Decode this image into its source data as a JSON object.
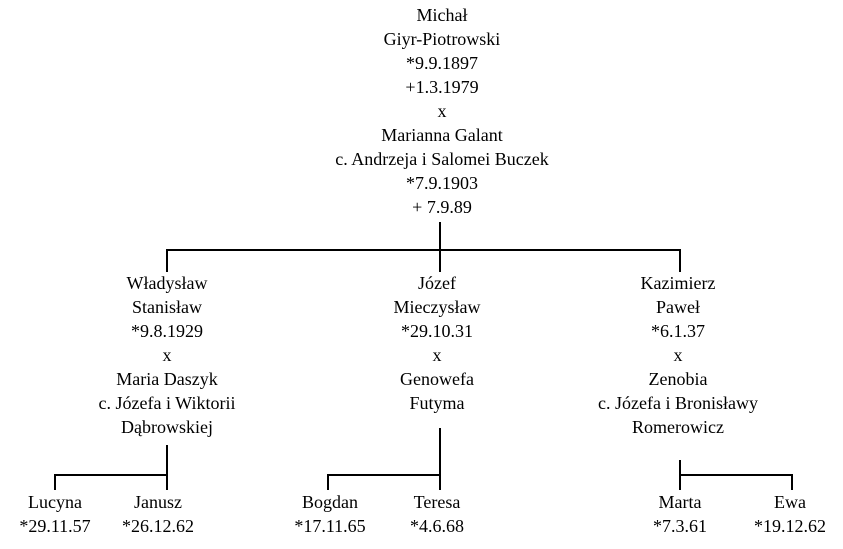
{
  "root": {
    "lines": [
      "Michał",
      "Giyr-Piotrowski",
      "*9.9.1897",
      "+1.3.1979",
      "x",
      "Marianna Galant",
      "c. Andrzeja i Salomei Buczek",
      "*7.9.1903",
      "+ 7.9.89"
    ],
    "children": [
      {
        "lines": [
          "Władysław",
          "Stanisław",
          "*9.8.1929",
          "x",
          "Maria Daszyk",
          "c. Józefa i Wiktorii",
          "Dąbrowskiej"
        ],
        "children": [
          {
            "lines": [
              "Lucyna",
              "*29.11.57"
            ]
          },
          {
            "lines": [
              "Janusz",
              "*26.12.62"
            ]
          }
        ]
      },
      {
        "lines": [
          "Józef",
          "Mieczysław",
          "*29.10.31",
          "x",
          "Genowefa",
          "Futyma"
        ],
        "children": [
          {
            "lines": [
              "Bogdan",
              "*17.11.65"
            ]
          },
          {
            "lines": [
              "Teresa",
              "*4.6.68"
            ]
          }
        ]
      },
      {
        "lines": [
          "Kazimierz",
          "Paweł",
          "*6.1.37",
          "x",
          "Zenobia",
          "c. Józefa i Bronisławy",
          "Romerowicz"
        ],
        "children": [
          {
            "lines": [
              "Marta",
              "*7.3.61"
            ]
          },
          {
            "lines": [
              "Ewa",
              "*19.12.62"
            ]
          }
        ]
      }
    ]
  }
}
